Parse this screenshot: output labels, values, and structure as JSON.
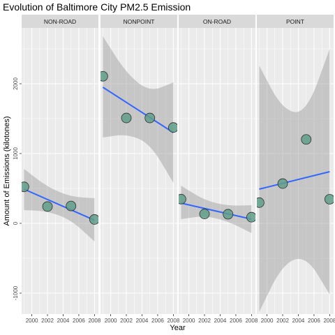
{
  "chart_data": {
    "type": "scatter",
    "title": "Evolution of Baltimore City PM2.5 Emission",
    "xlabel": "Year",
    "ylabel": "Amount of Emissions (kilotones)",
    "x_ticks": [
      2000,
      2002,
      2004,
      2006,
      2008
    ],
    "y_ticks": [
      -1000,
      0,
      1000,
      2000
    ],
    "xlim": [
      1998.7,
      2008.5
    ],
    "ylim": [
      -1300,
      2800
    ],
    "grid": true,
    "trend_line": "linear fit with confidence band",
    "colors": {
      "point_fill": "#5f9e8a",
      "point_stroke": "#2e2e2e",
      "line": "#3366ff",
      "band": "#999999",
      "panel_bg": "#ebebeb",
      "strip_bg": "#d9d9d9"
    },
    "panels": [
      {
        "name": "NON-ROAD",
        "x": [
          1999,
          2002,
          2005,
          2008
        ],
        "y": [
          522.94,
          240.85,
          248.93,
          55.82
        ],
        "fit": {
          "x0": 1999,
          "y0": 490,
          "x1": 2008,
          "y1": 45
        },
        "band_upper": [
          [
            1999,
            780
          ],
          [
            2002,
            520
          ],
          [
            2005,
            380
          ],
          [
            2008,
            360
          ]
        ],
        "band_lower": [
          [
            1999,
            190
          ],
          [
            2002,
            175
          ],
          [
            2005,
            50
          ],
          [
            2008,
            -260
          ]
        ]
      },
      {
        "name": "NONPOINT",
        "x": [
          1999,
          2002,
          2005,
          2008
        ],
        "y": [
          2107.63,
          1509.5,
          1509.5,
          1373.21
        ],
        "fit": {
          "x0": 1999,
          "y0": 1950,
          "x1": 2008,
          "y1": 1300
        },
        "band_upper": [
          [
            1999,
            2680
          ],
          [
            2002,
            2150
          ],
          [
            2005,
            1880
          ],
          [
            2008,
            2020
          ]
        ],
        "band_lower": [
          [
            1999,
            1230
          ],
          [
            2002,
            1280
          ],
          [
            2005,
            1150
          ],
          [
            2008,
            580
          ]
        ]
      },
      {
        "name": "ON-ROAD",
        "x": [
          1999,
          2002,
          2005,
          2008
        ],
        "y": [
          346.82,
          134.31,
          130.43,
          88.28
        ],
        "fit": {
          "x0": 1999,
          "y0": 290,
          "x1": 2008,
          "y1": 60
        },
        "band_upper": [
          [
            1999,
            540
          ],
          [
            2002,
            330
          ],
          [
            2005,
            250
          ],
          [
            2008,
            260
          ]
        ],
        "band_lower": [
          [
            1999,
            60
          ],
          [
            2002,
            110
          ],
          [
            2005,
            30
          ],
          [
            2008,
            -140
          ]
        ]
      },
      {
        "name": "POINT",
        "x": [
          1999,
          2002,
          2005,
          2008
        ],
        "y": [
          296.8,
          569.26,
          1202.49,
          344.98
        ],
        "fit": {
          "x0": 1999,
          "y0": 490,
          "x1": 2008,
          "y1": 740
        },
        "band_upper": [
          [
            1999,
            2260
          ],
          [
            2002,
            1620
          ],
          [
            2005,
            1570
          ],
          [
            2008,
            2500
          ]
        ],
        "band_lower": [
          [
            1999,
            -1270
          ],
          [
            2002,
            -580
          ],
          [
            2005,
            -460
          ],
          [
            2008,
            -1020
          ]
        ]
      }
    ]
  }
}
